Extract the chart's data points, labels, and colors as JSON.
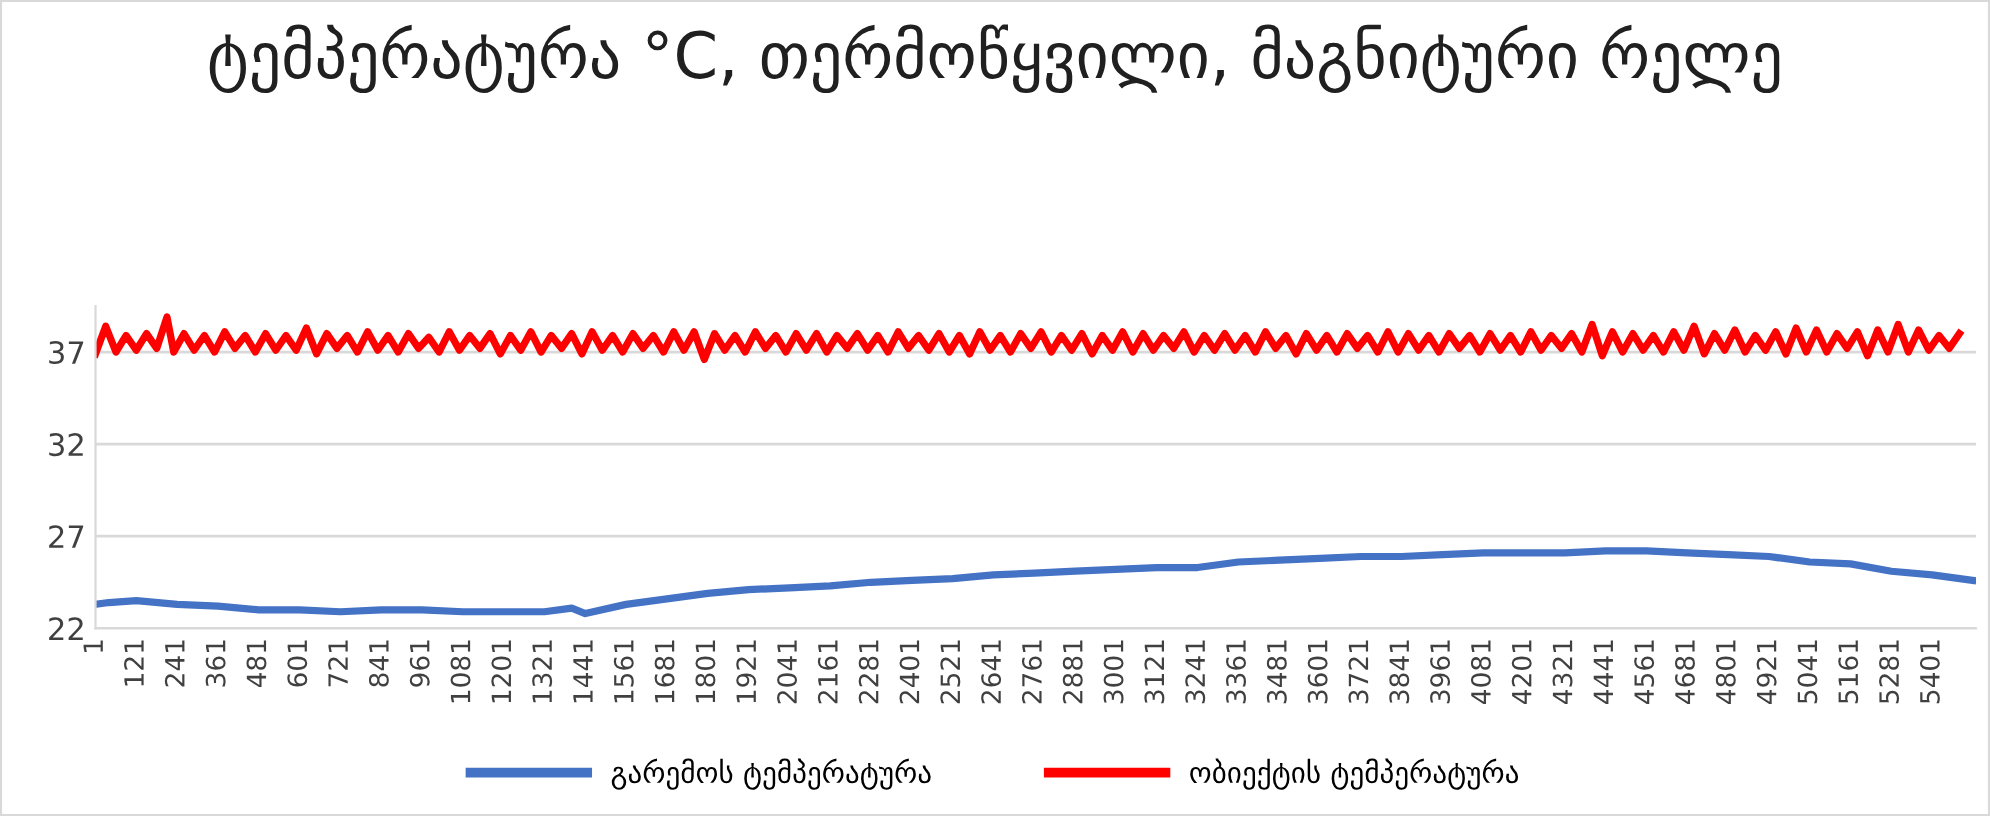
{
  "chart_data": {
    "type": "line",
    "title": "ტემპერატურა °C, თერმოწყვილი, მაგნიტური რელე",
    "xlim": [
      1,
      5530
    ],
    "xticks": [
      1,
      121,
      241,
      361,
      481,
      601,
      721,
      841,
      961,
      1081,
      1201,
      1321,
      1441,
      1561,
      1681,
      1801,
      1921,
      2041,
      2161,
      2281,
      2401,
      2521,
      2641,
      2761,
      2881,
      3001,
      3121,
      3241,
      3361,
      3481,
      3601,
      3721,
      3841,
      3961,
      4081,
      4201,
      4321,
      4441,
      4561,
      4681,
      4801,
      4921,
      5041,
      5161,
      5281,
      5401
    ],
    "ylim": [
      22,
      39.5
    ],
    "yticks": [
      22,
      27,
      32,
      37
    ],
    "grid": "y",
    "legend": "bottom",
    "marker": "none",
    "line_style": "solid",
    "series": [
      {
        "name": "გარემოს ტემპერატურა",
        "color": "#4472c4",
        "x": [
          1,
          40,
          121,
          241,
          361,
          481,
          601,
          721,
          841,
          961,
          1081,
          1201,
          1321,
          1401,
          1441,
          1561,
          1681,
          1801,
          1921,
          2041,
          2161,
          2281,
          2401,
          2521,
          2641,
          2761,
          2881,
          3001,
          3121,
          3241,
          3361,
          3481,
          3601,
          3721,
          3841,
          3961,
          4081,
          4201,
          4321,
          4441,
          4561,
          4681,
          4801,
          4921,
          5041,
          5161,
          5281,
          5401,
          5520
        ],
        "values": [
          23.3,
          23.4,
          23.5,
          23.3,
          23.2,
          23.0,
          23.0,
          22.9,
          23.0,
          23.0,
          22.9,
          22.9,
          22.9,
          23.1,
          22.8,
          23.3,
          23.6,
          23.9,
          24.1,
          24.2,
          24.3,
          24.5,
          24.6,
          24.7,
          24.9,
          25.0,
          25.1,
          25.2,
          25.3,
          25.3,
          25.6,
          25.7,
          25.8,
          25.9,
          25.9,
          26.0,
          26.1,
          26.1,
          26.1,
          26.2,
          26.2,
          26.1,
          26.0,
          25.9,
          25.6,
          25.5,
          25.1,
          24.9,
          24.6
        ]
      },
      {
        "name": "ობიექტის ტემპერატურა",
        "color": "#ff0000",
        "x": [
          1,
          31,
          61,
          91,
          121,
          151,
          181,
          211,
          231,
          261,
          291,
          321,
          351,
          381,
          411,
          441,
          471,
          501,
          531,
          561,
          591,
          621,
          651,
          681,
          711,
          741,
          771,
          801,
          831,
          861,
          891,
          921,
          951,
          981,
          1011,
          1041,
          1071,
          1101,
          1131,
          1161,
          1191,
          1221,
          1251,
          1281,
          1311,
          1341,
          1371,
          1401,
          1431,
          1461,
          1491,
          1521,
          1551,
          1581,
          1611,
          1641,
          1671,
          1701,
          1731,
          1761,
          1791,
          1821,
          1851,
          1881,
          1911,
          1941,
          1971,
          2001,
          2031,
          2061,
          2091,
          2121,
          2151,
          2181,
          2211,
          2241,
          2271,
          2301,
          2331,
          2361,
          2391,
          2421,
          2451,
          2481,
          2511,
          2541,
          2571,
          2601,
          2631,
          2661,
          2691,
          2721,
          2751,
          2781,
          2811,
          2841,
          2871,
          2901,
          2931,
          2961,
          2991,
          3021,
          3051,
          3081,
          3111,
          3141,
          3171,
          3201,
          3231,
          3261,
          3291,
          3321,
          3351,
          3381,
          3411,
          3441,
          3471,
          3501,
          3531,
          3561,
          3591,
          3621,
          3651,
          3681,
          3711,
          3741,
          3771,
          3801,
          3831,
          3861,
          3891,
          3921,
          3951,
          3981,
          4011,
          4041,
          4071,
          4101,
          4131,
          4161,
          4191,
          4221,
          4251,
          4281,
          4311,
          4341,
          4371,
          4401,
          4431,
          4461,
          4491,
          4521,
          4551,
          4581,
          4611,
          4641,
          4671,
          4701,
          4731,
          4761,
          4791,
          4821,
          4851,
          4881,
          4911,
          4941,
          4971,
          5001,
          5031,
          5061,
          5091,
          5121,
          5151,
          5181,
          5211,
          5241,
          5271,
          5301,
          5331,
          5361,
          5391,
          5421,
          5451,
          5481
        ],
        "values": [
          36.9,
          38.4,
          37.0,
          37.9,
          37.1,
          38.0,
          37.2,
          38.9,
          37.0,
          38.0,
          37.1,
          37.9,
          37.0,
          38.1,
          37.2,
          37.9,
          37.0,
          38.0,
          37.1,
          37.9,
          37.1,
          38.3,
          36.9,
          38.0,
          37.2,
          37.9,
          37.0,
          38.1,
          37.1,
          37.9,
          37.0,
          38.0,
          37.2,
          37.8,
          37.0,
          38.1,
          37.1,
          37.9,
          37.2,
          38.0,
          36.9,
          37.9,
          37.1,
          38.1,
          37.0,
          37.9,
          37.2,
          38.0,
          36.9,
          38.1,
          37.1,
          37.9,
          37.0,
          38.0,
          37.2,
          37.9,
          37.0,
          38.1,
          37.1,
          38.1,
          36.6,
          38.0,
          37.1,
          37.9,
          37.0,
          38.1,
          37.2,
          37.9,
          37.0,
          38.0,
          37.1,
          38.0,
          37.0,
          37.9,
          37.2,
          38.0,
          37.1,
          37.9,
          37.0,
          38.1,
          37.2,
          37.9,
          37.1,
          38.0,
          37.0,
          37.9,
          36.9,
          38.1,
          37.1,
          37.9,
          37.0,
          38.0,
          37.2,
          38.1,
          37.0,
          37.9,
          37.1,
          38.0,
          36.9,
          37.9,
          37.1,
          38.1,
          37.0,
          38.0,
          37.1,
          37.9,
          37.2,
          38.1,
          37.0,
          37.9,
          37.1,
          38.0,
          37.1,
          37.9,
          37.0,
          38.1,
          37.2,
          37.9,
          36.9,
          38.0,
          37.1,
          37.9,
          37.0,
          38.0,
          37.2,
          37.9,
          37.0,
          38.1,
          37.0,
          38.0,
          37.1,
          37.9,
          37.0,
          38.0,
          37.2,
          37.9,
          37.0,
          38.0,
          37.1,
          37.9,
          37.0,
          38.1,
          37.1,
          37.9,
          37.2,
          38.0,
          37.0,
          38.5,
          36.8,
          38.1,
          37.0,
          38.0,
          37.1,
          37.9,
          37.0,
          38.1,
          37.1,
          38.4,
          36.9,
          38.0,
          37.1,
          38.2,
          37.0,
          37.9,
          37.1,
          38.1,
          36.9,
          38.3,
          37.0,
          38.2,
          37.0,
          38.0,
          37.2,
          38.1,
          36.8,
          38.2,
          37.0,
          38.5,
          37.0,
          38.2,
          37.1,
          37.9,
          37.2,
          38.0
        ]
      }
    ]
  }
}
